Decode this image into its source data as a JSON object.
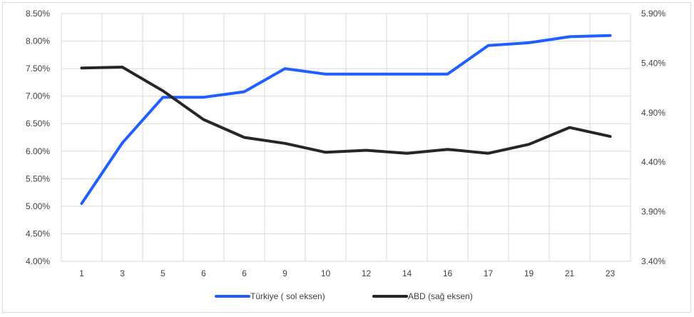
{
  "chart_data": {
    "type": "line",
    "categories": [
      "1",
      "3",
      "5",
      "6",
      "6",
      "9",
      "10",
      "12",
      "14",
      "16",
      "17",
      "19",
      "21",
      "23"
    ],
    "series": [
      {
        "name": "Türkiye ( sol eksen)",
        "axis": "left",
        "color": "#1f5eff",
        "values": [
          5.05,
          6.15,
          6.98,
          6.98,
          7.08,
          7.5,
          7.4,
          7.4,
          7.4,
          7.4,
          7.92,
          7.97,
          8.08,
          8.1
        ]
      },
      {
        "name": "ABD (sağ eksen)",
        "axis": "right",
        "color": "#262626",
        "values": [
          5.35,
          5.36,
          5.12,
          4.83,
          4.65,
          4.59,
          4.5,
          4.52,
          4.49,
          4.53,
          4.49,
          4.58,
          4.75,
          4.66
        ]
      }
    ],
    "y_left": {
      "lim": [
        4.0,
        8.5
      ],
      "ticks": [
        "4.00%",
        "4.50%",
        "5.00%",
        "5.50%",
        "6.00%",
        "6.50%",
        "7.00%",
        "7.50%",
        "8.00%",
        "8.50%"
      ]
    },
    "y_right": {
      "lim": [
        3.4,
        5.9
      ],
      "ticks": [
        "3.40%",
        "3.90%",
        "4.40%",
        "4.90%",
        "5.40%",
        "5.90%"
      ]
    },
    "grid": true,
    "legend_position": "bottom"
  }
}
